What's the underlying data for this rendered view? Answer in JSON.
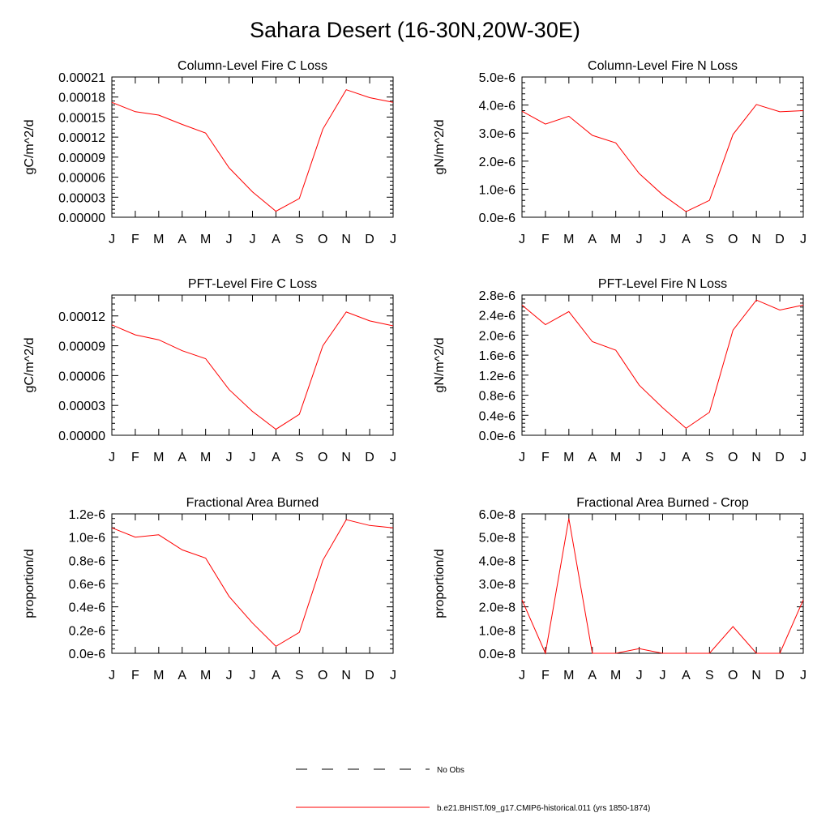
{
  "title": "Sahara Desert (16-30N,20W-30E)",
  "legend": {
    "obs_label": "No Obs",
    "model_label": "b.e21.BHIST.f09_g17.CMIP6-historical.011 (yrs 1850-1874)",
    "model_color": "#ff0000",
    "obs_color": "#000000"
  },
  "chart_data": [
    {
      "type": "line",
      "title": "Column-Level Fire C Loss",
      "ylabel": "gC/m^2/d",
      "categories": [
        "J",
        "F",
        "M",
        "A",
        "M",
        "J",
        "J",
        "A",
        "S",
        "O",
        "N",
        "D",
        "J"
      ],
      "ylim": [
        0,
        0.00021
      ],
      "yticks": [
        "0.00000",
        "0.00003",
        "0.00006",
        "0.00009",
        "0.00012",
        "0.00015",
        "0.00018",
        "0.00021"
      ],
      "series": [
        {
          "values": [
            0.000172,
            0.000158,
            0.000153,
            0.000139,
            0.000126,
            7.4e-05,
            3.8e-05,
            9e-06,
            2.8e-05,
            0.000132,
            0.000191,
            0.000179,
            0.000172
          ]
        }
      ]
    },
    {
      "type": "line",
      "title": "Column-Level Fire N Loss",
      "ylabel": "gN/m^2/d",
      "categories": [
        "J",
        "F",
        "M",
        "A",
        "M",
        "J",
        "J",
        "A",
        "S",
        "O",
        "N",
        "D",
        "J"
      ],
      "ylim": [
        0,
        5e-06
      ],
      "yticks": [
        "0.0e-6",
        "1.0e-6",
        "2.0e-6",
        "3.0e-6",
        "4.0e-6",
        "5.0e-6"
      ],
      "series": [
        {
          "values": [
            3.78e-06,
            3.32e-06,
            3.6e-06,
            2.92e-06,
            2.65e-06,
            1.56e-06,
            8e-07,
            2e-07,
            6e-07,
            2.95e-06,
            4.02e-06,
            3.76e-06,
            3.8e-06
          ]
        }
      ]
    },
    {
      "type": "line",
      "title": "PFT-Level Fire C Loss",
      "ylabel": "gC/m^2/d",
      "categories": [
        "J",
        "F",
        "M",
        "A",
        "M",
        "J",
        "J",
        "A",
        "S",
        "O",
        "N",
        "D",
        "J"
      ],
      "ylim": [
        0,
        0.000141
      ],
      "yticks": [
        "0.00000",
        "0.00003",
        "0.00006",
        "0.00009",
        "0.00012"
      ],
      "series": [
        {
          "values": [
            0.000111,
            0.000101,
            9.6e-05,
            8.5e-05,
            7.7e-05,
            4.6e-05,
            2.4e-05,
            6e-06,
            2.1e-05,
            9e-05,
            0.000124,
            0.000115,
            0.00011
          ]
        }
      ]
    },
    {
      "type": "line",
      "title": "PFT-Level Fire N Loss",
      "ylabel": "gN/m^2/d",
      "categories": [
        "J",
        "F",
        "M",
        "A",
        "M",
        "J",
        "J",
        "A",
        "S",
        "O",
        "N",
        "D",
        "J"
      ],
      "ylim": [
        0,
        2.8e-06
      ],
      "yticks": [
        "0.0e-6",
        "0.4e-6",
        "0.8e-6",
        "1.2e-6",
        "1.6e-6",
        "2.0e-6",
        "2.4e-6",
        "2.8e-6"
      ],
      "series": [
        {
          "values": [
            2.6e-06,
            2.21e-06,
            2.47e-06,
            1.87e-06,
            1.7e-06,
            1e-06,
            5.5e-07,
            1.4e-07,
            4.6e-07,
            2.1e-06,
            2.7e-06,
            2.5e-06,
            2.6e-06
          ]
        }
      ]
    },
    {
      "type": "line",
      "title": "Fractional Area Burned",
      "ylabel": "proportion/d",
      "categories": [
        "J",
        "F",
        "M",
        "A",
        "M",
        "J",
        "J",
        "A",
        "S",
        "O",
        "N",
        "D",
        "J"
      ],
      "ylim": [
        0,
        1.2e-06
      ],
      "yticks": [
        "0.0e-6",
        "0.2e-6",
        "0.4e-6",
        "0.6e-6",
        "0.8e-6",
        "1.0e-6",
        "1.2e-6"
      ],
      "series": [
        {
          "values": [
            1.08e-06,
            1e-06,
            1.02e-06,
            8.9e-07,
            8.2e-07,
            4.9e-07,
            2.6e-07,
            6e-08,
            1.8e-07,
            8e-07,
            1.15e-06,
            1.1e-06,
            1.08e-06
          ]
        }
      ]
    },
    {
      "type": "line",
      "title": "Fractional Area Burned - Crop",
      "ylabel": "proportion/d",
      "categories": [
        "J",
        "F",
        "M",
        "A",
        "M",
        "J",
        "J",
        "A",
        "S",
        "O",
        "N",
        "D",
        "J"
      ],
      "ylim": [
        0,
        6e-08
      ],
      "yticks": [
        "0.0e-8",
        "1.0e-8",
        "2.0e-8",
        "3.0e-8",
        "4.0e-8",
        "5.0e-8",
        "6.0e-8"
      ],
      "series": [
        {
          "values": [
            2.3e-08,
            0,
            5.8e-08,
            0,
            0,
            2e-09,
            0,
            0,
            0,
            1.15e-08,
            0,
            0,
            2.3e-08
          ]
        }
      ]
    }
  ]
}
